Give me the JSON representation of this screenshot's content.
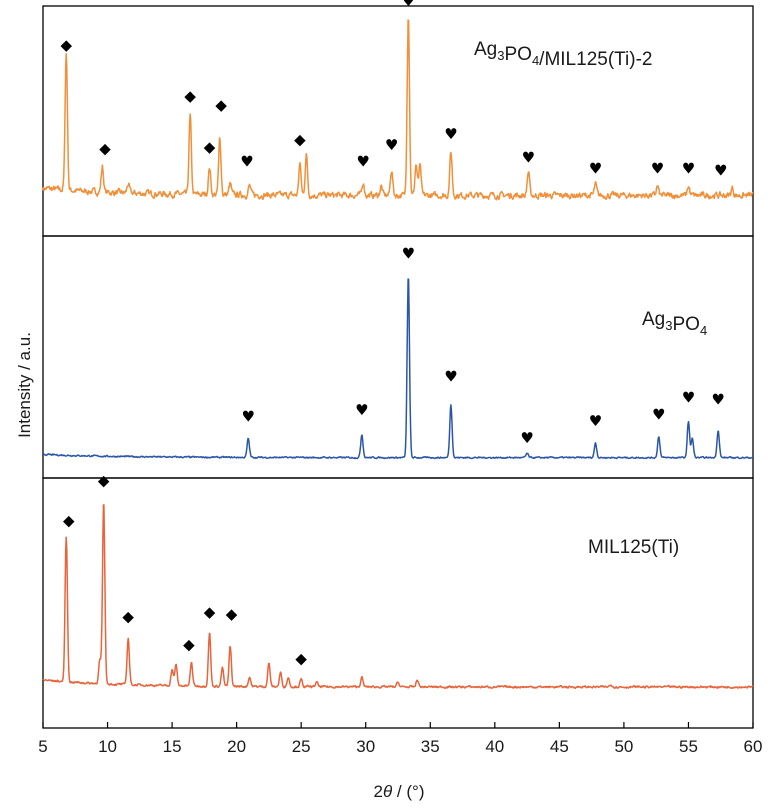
{
  "chart_data": {
    "type": "line",
    "xlabel": {
      "prefix": "2",
      "italic": "θ",
      "suffix": " / (°)"
    },
    "ylabel": "Intensity / a.u.",
    "xlim": [
      5,
      60
    ],
    "x_ticks": [
      5,
      10,
      15,
      20,
      25,
      30,
      35,
      40,
      45,
      50,
      55,
      60
    ],
    "grid": false,
    "marker_legend": {
      "diamond": "◆",
      "heart": "♥"
    },
    "series": [
      {
        "name": "Ag3PO4/MIL125(Ti)-2",
        "label_parts": [
          {
            "text": "Ag",
            "sub": false
          },
          {
            "text": "3",
            "sub": true
          },
          {
            "text": "PO",
            "sub": false
          },
          {
            "text": "4",
            "sub": true
          },
          {
            "text": "/MIL125(Ti)-2",
            "sub": false
          }
        ],
        "color": "#f0903a",
        "baseline": 0.08,
        "noise": 0.03,
        "peaks": [
          {
            "x": 6.8,
            "h": 0.75
          },
          {
            "x": 9.6,
            "h": 0.14
          },
          {
            "x": 11.6,
            "h": 0.05
          },
          {
            "x": 16.4,
            "h": 0.43
          },
          {
            "x": 17.9,
            "h": 0.15
          },
          {
            "x": 18.7,
            "h": 0.31
          },
          {
            "x": 19.5,
            "h": 0.06
          },
          {
            "x": 21.0,
            "h": 0.05
          },
          {
            "x": 24.9,
            "h": 0.17
          },
          {
            "x": 25.4,
            "h": 0.22
          },
          {
            "x": 29.8,
            "h": 0.07
          },
          {
            "x": 31.2,
            "h": 0.05
          },
          {
            "x": 32.0,
            "h": 0.14
          },
          {
            "x": 33.3,
            "h": 1.0
          },
          {
            "x": 33.9,
            "h": 0.17
          },
          {
            "x": 34.2,
            "h": 0.16
          },
          {
            "x": 36.6,
            "h": 0.24
          },
          {
            "x": 42.6,
            "h": 0.13
          },
          {
            "x": 47.8,
            "h": 0.06
          },
          {
            "x": 52.6,
            "h": 0.05
          },
          {
            "x": 55.0,
            "h": 0.05
          },
          {
            "x": 58.4,
            "h": 0.04
          }
        ],
        "markers": [
          {
            "type": "diamond",
            "x": 6.8,
            "y": 0.88
          },
          {
            "type": "diamond",
            "x": 9.8,
            "y": 0.31
          },
          {
            "type": "diamond",
            "x": 16.4,
            "y": 0.6
          },
          {
            "type": "diamond",
            "x": 17.9,
            "y": 0.32
          },
          {
            "type": "diamond",
            "x": 18.8,
            "y": 0.55
          },
          {
            "type": "heart",
            "x": 20.8,
            "y": 0.24
          },
          {
            "type": "diamond",
            "x": 24.9,
            "y": 0.36
          },
          {
            "type": "heart",
            "x": 29.8,
            "y": 0.24
          },
          {
            "type": "heart",
            "x": 32.0,
            "y": 0.33
          },
          {
            "type": "heart",
            "x": 33.3,
            "y": 1.12
          },
          {
            "type": "heart",
            "x": 36.6,
            "y": 0.39
          },
          {
            "type": "heart",
            "x": 42.6,
            "y": 0.26
          },
          {
            "type": "heart",
            "x": 47.8,
            "y": 0.2
          },
          {
            "type": "heart",
            "x": 52.6,
            "y": 0.2
          },
          {
            "type": "heart",
            "x": 55.0,
            "y": 0.2
          },
          {
            "type": "heart",
            "x": 57.5,
            "y": 0.19
          }
        ]
      },
      {
        "name": "Ag3PO4",
        "label_parts": [
          {
            "text": "Ag",
            "sub": false
          },
          {
            "text": "3",
            "sub": true
          },
          {
            "text": "PO",
            "sub": false
          },
          {
            "text": "4",
            "sub": true
          }
        ],
        "color": "#2b56a8",
        "baseline": 0.03,
        "noise": 0.006,
        "peaks": [
          {
            "x": 20.9,
            "h": 0.09
          },
          {
            "x": 29.7,
            "h": 0.11
          },
          {
            "x": 33.3,
            "h": 0.86
          },
          {
            "x": 36.6,
            "h": 0.25
          },
          {
            "x": 42.5,
            "h": 0.02
          },
          {
            "x": 47.8,
            "h": 0.07
          },
          {
            "x": 52.7,
            "h": 0.1
          },
          {
            "x": 55.0,
            "h": 0.17
          },
          {
            "x": 55.3,
            "h": 0.09
          },
          {
            "x": 57.3,
            "h": 0.13
          }
        ],
        "markers": [
          {
            "type": "heart",
            "x": 20.9,
            "y": 0.2
          },
          {
            "type": "heart",
            "x": 29.7,
            "y": 0.23
          },
          {
            "type": "heart",
            "x": 33.3,
            "y": 0.97
          },
          {
            "type": "heart",
            "x": 36.6,
            "y": 0.39
          },
          {
            "type": "heart",
            "x": 42.5,
            "y": 0.1
          },
          {
            "type": "heart",
            "x": 47.8,
            "y": 0.18
          },
          {
            "type": "heart",
            "x": 52.7,
            "y": 0.21
          },
          {
            "type": "heart",
            "x": 55.0,
            "y": 0.29
          },
          {
            "type": "heart",
            "x": 57.3,
            "y": 0.28
          }
        ]
      },
      {
        "name": "MIL125(Ti)",
        "label_parts": [
          {
            "text": "MIL125(Ti)",
            "sub": false
          }
        ],
        "color": "#e8643a",
        "baseline": 0.06,
        "noise": 0.008,
        "peaks": [
          {
            "x": 6.8,
            "h": 0.62
          },
          {
            "x": 9.4,
            "h": 0.1
          },
          {
            "x": 9.7,
            "h": 0.78
          },
          {
            "x": 11.6,
            "h": 0.2
          },
          {
            "x": 15.0,
            "h": 0.07
          },
          {
            "x": 15.3,
            "h": 0.09
          },
          {
            "x": 16.5,
            "h": 0.1
          },
          {
            "x": 17.9,
            "h": 0.23
          },
          {
            "x": 18.9,
            "h": 0.08
          },
          {
            "x": 19.5,
            "h": 0.17
          },
          {
            "x": 21.0,
            "h": 0.04
          },
          {
            "x": 22.5,
            "h": 0.1
          },
          {
            "x": 23.4,
            "h": 0.06
          },
          {
            "x": 24.0,
            "h": 0.04
          },
          {
            "x": 25.0,
            "h": 0.03
          },
          {
            "x": 26.2,
            "h": 0.02
          },
          {
            "x": 29.7,
            "h": 0.04
          },
          {
            "x": 32.5,
            "h": 0.02
          },
          {
            "x": 34.0,
            "h": 0.03
          },
          {
            "x": 49.0,
            "h": 0.01
          }
        ],
        "markers": [
          {
            "type": "diamond",
            "x": 7.0,
            "y": 0.75
          },
          {
            "type": "diamond",
            "x": 9.7,
            "y": 0.92
          },
          {
            "type": "diamond",
            "x": 11.6,
            "y": 0.34
          },
          {
            "type": "diamond",
            "x": 16.3,
            "y": 0.22
          },
          {
            "type": "diamond",
            "x": 17.9,
            "y": 0.36
          },
          {
            "type": "diamond",
            "x": 19.6,
            "y": 0.35
          },
          {
            "type": "diamond",
            "x": 25.0,
            "y": 0.16
          }
        ]
      }
    ]
  }
}
